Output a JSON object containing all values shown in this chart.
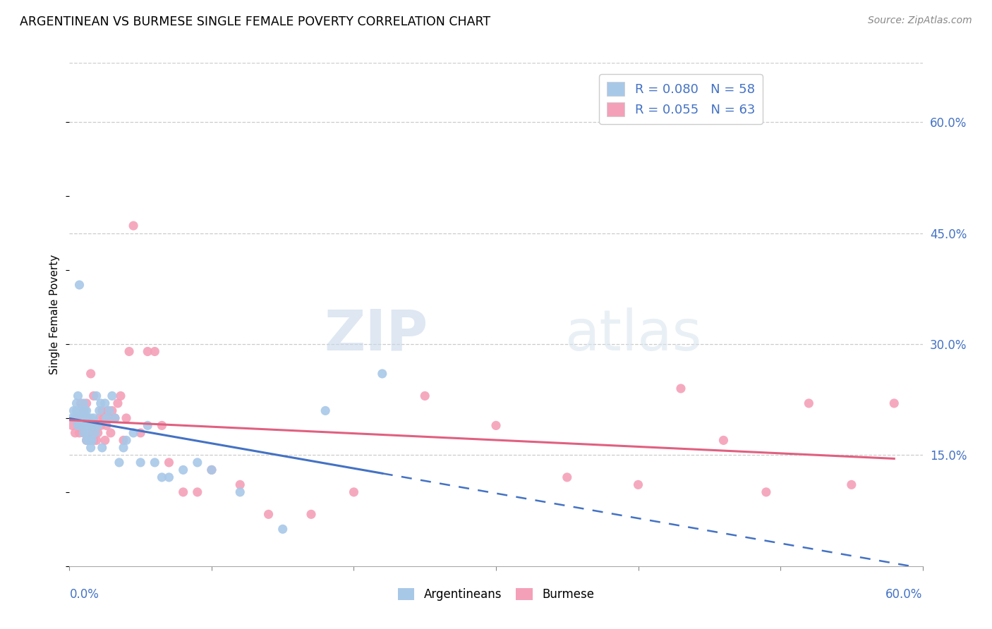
{
  "title": "ARGENTINEAN VS BURMESE SINGLE FEMALE POVERTY CORRELATION CHART",
  "source": "Source: ZipAtlas.com",
  "ylabel": "Single Female Poverty",
  "right_yticks": [
    "60.0%",
    "45.0%",
    "30.0%",
    "15.0%"
  ],
  "right_ytick_vals": [
    0.6,
    0.45,
    0.3,
    0.15
  ],
  "xlim": [
    0.0,
    0.6
  ],
  "ylim": [
    0.0,
    0.68
  ],
  "legend_arg_label": "R = 0.080   N = 58",
  "legend_bur_label": "R = 0.055   N = 63",
  "arg_color": "#a8c8e8",
  "bur_color": "#f4a0b8",
  "arg_line_color": "#4472c4",
  "bur_line_color": "#e06080",
  "legend_text_color": "#4472c4",
  "watermark_zip": "ZIP",
  "watermark_atlas": "atlas",
  "bottom_legend_arg": "Argentineans",
  "bottom_legend_bur": "Burmese",
  "arg_scatter_x": [
    0.002,
    0.003,
    0.004,
    0.005,
    0.005,
    0.006,
    0.006,
    0.007,
    0.007,
    0.008,
    0.008,
    0.009,
    0.009,
    0.009,
    0.01,
    0.01,
    0.01,
    0.011,
    0.011,
    0.012,
    0.012,
    0.012,
    0.013,
    0.013,
    0.014,
    0.014,
    0.015,
    0.015,
    0.016,
    0.016,
    0.017,
    0.018,
    0.019,
    0.02,
    0.021,
    0.022,
    0.023,
    0.025,
    0.026,
    0.028,
    0.03,
    0.032,
    0.035,
    0.038,
    0.04,
    0.045,
    0.05,
    0.055,
    0.06,
    0.065,
    0.07,
    0.08,
    0.09,
    0.1,
    0.12,
    0.15,
    0.18,
    0.22
  ],
  "arg_scatter_y": [
    0.2,
    0.21,
    0.2,
    0.21,
    0.22,
    0.19,
    0.23,
    0.2,
    0.38,
    0.2,
    0.21,
    0.19,
    0.21,
    0.2,
    0.18,
    0.2,
    0.22,
    0.19,
    0.21,
    0.17,
    0.19,
    0.21,
    0.18,
    0.2,
    0.17,
    0.19,
    0.16,
    0.2,
    0.17,
    0.19,
    0.2,
    0.18,
    0.23,
    0.19,
    0.21,
    0.22,
    0.16,
    0.22,
    0.2,
    0.21,
    0.23,
    0.2,
    0.14,
    0.16,
    0.17,
    0.18,
    0.14,
    0.19,
    0.14,
    0.12,
    0.12,
    0.13,
    0.14,
    0.13,
    0.1,
    0.05,
    0.21,
    0.26
  ],
  "bur_scatter_x": [
    0.002,
    0.004,
    0.005,
    0.006,
    0.007,
    0.008,
    0.008,
    0.009,
    0.01,
    0.01,
    0.011,
    0.012,
    0.012,
    0.013,
    0.013,
    0.014,
    0.015,
    0.015,
    0.016,
    0.017,
    0.017,
    0.018,
    0.019,
    0.02,
    0.021,
    0.022,
    0.023,
    0.024,
    0.025,
    0.026,
    0.027,
    0.028,
    0.029,
    0.03,
    0.032,
    0.034,
    0.036,
    0.038,
    0.04,
    0.042,
    0.045,
    0.05,
    0.055,
    0.06,
    0.065,
    0.07,
    0.08,
    0.09,
    0.1,
    0.12,
    0.14,
    0.17,
    0.2,
    0.25,
    0.3,
    0.35,
    0.4,
    0.43,
    0.46,
    0.49,
    0.52,
    0.55,
    0.58
  ],
  "bur_scatter_y": [
    0.19,
    0.18,
    0.2,
    0.19,
    0.18,
    0.2,
    0.22,
    0.19,
    0.18,
    0.21,
    0.2,
    0.17,
    0.22,
    0.18,
    0.2,
    0.17,
    0.19,
    0.26,
    0.18,
    0.17,
    0.23,
    0.19,
    0.17,
    0.18,
    0.2,
    0.19,
    0.21,
    0.2,
    0.17,
    0.19,
    0.21,
    0.2,
    0.18,
    0.21,
    0.2,
    0.22,
    0.23,
    0.17,
    0.2,
    0.29,
    0.46,
    0.18,
    0.29,
    0.29,
    0.19,
    0.14,
    0.1,
    0.1,
    0.13,
    0.11,
    0.07,
    0.07,
    0.1,
    0.23,
    0.19,
    0.12,
    0.11,
    0.24,
    0.17,
    0.1,
    0.22,
    0.11,
    0.22
  ]
}
